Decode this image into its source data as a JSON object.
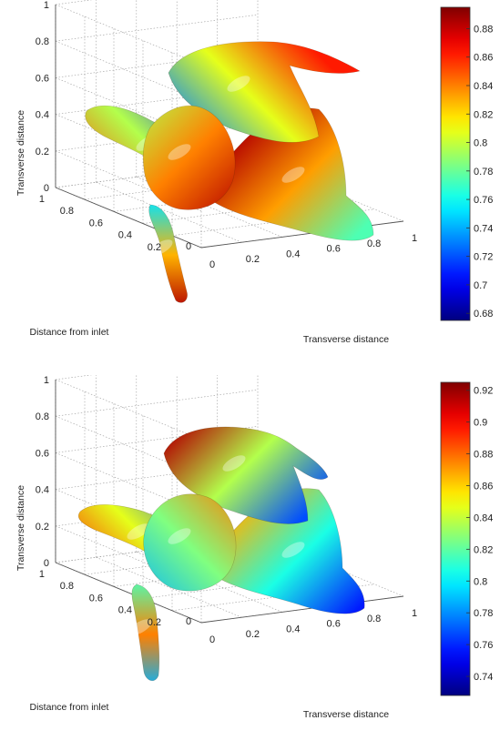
{
  "chart_data": [
    {
      "type": "surface3d",
      "xlabel": "Transverse distance",
      "ylabel": "Distance from inlet",
      "zlabel": "Transverse distance",
      "x_ticks": [
        "0",
        "0.2",
        "0.4",
        "0.6",
        "0.8",
        "1"
      ],
      "y_ticks": [
        "0",
        "0.2",
        "0.4",
        "0.6",
        "0.8",
        "1"
      ],
      "z_ticks": [
        "0",
        "0.2",
        "0.4",
        "0.6",
        "0.8",
        "1"
      ],
      "xlim": [
        0,
        1
      ],
      "ylim": [
        0,
        1
      ],
      "zlim": [
        0,
        1
      ],
      "grid": true,
      "colormap": "jet",
      "colorbar": {
        "range": [
          0.675,
          0.895
        ],
        "ticks": [
          "0.68",
          "0.7",
          "0.72",
          "0.74",
          "0.76",
          "0.78",
          "0.8",
          "0.82",
          "0.84",
          "0.86",
          "0.88"
        ]
      }
    },
    {
      "type": "surface3d",
      "xlabel": "Transverse distance",
      "ylabel": "Distance from inlet",
      "zlabel": "Transverse distance",
      "x_ticks": [
        "0",
        "0.2",
        "0.4",
        "0.6",
        "0.8",
        "1"
      ],
      "y_ticks": [
        "0",
        "0.2",
        "0.4",
        "0.6",
        "0.8",
        "1"
      ],
      "z_ticks": [
        "0",
        "0.2",
        "0.4",
        "0.6",
        "0.8",
        "1"
      ],
      "xlim": [
        0,
        1
      ],
      "ylim": [
        0,
        1
      ],
      "zlim": [
        0,
        1
      ],
      "grid": true,
      "colormap": "jet",
      "colorbar": {
        "range": [
          0.728,
          0.925
        ],
        "ticks": [
          "0.74",
          "0.76",
          "0.78",
          "0.8",
          "0.82",
          "0.84",
          "0.86",
          "0.88",
          "0.9",
          "0.92"
        ]
      }
    }
  ]
}
